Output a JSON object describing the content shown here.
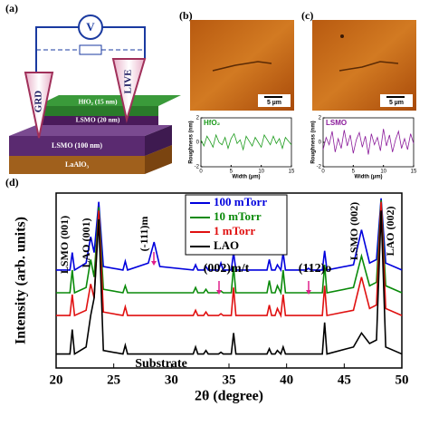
{
  "panel_labels": [
    "(a)",
    "(b)",
    "(c)",
    "(d)"
  ],
  "schematic": {
    "voltmeter": "V",
    "probes": [
      "GRD",
      "LIVE"
    ],
    "layers": [
      "HfO₂ (15 nm)",
      "LSMO (20 nm)",
      "LSMO (100 nm)",
      "LaAlO₃"
    ]
  },
  "afm_images": [
    {
      "scale_bar": "5 µm"
    },
    {
      "scale_bar": "5 µm"
    }
  ],
  "chart_data": [
    {
      "type": "line",
      "xlabel": "Width (µm)",
      "ylabel": "Roughness (nm)",
      "x": [
        0,
        0.5,
        1,
        1.5,
        2,
        2.5,
        3,
        3.5,
        4,
        4.5,
        5,
        5.5,
        6,
        6.5,
        7,
        7.5,
        8,
        8.5,
        9,
        9.5,
        10,
        10.5,
        11,
        11.5,
        12,
        12.5,
        13,
        13.5,
        14,
        14.5,
        15
      ],
      "series": [
        {
          "name": "HfO₂",
          "color": "#1a9a1a",
          "values": [
            0.2,
            -0.3,
            0.5,
            0.1,
            -0.4,
            0.6,
            0.0,
            -0.2,
            0.4,
            -0.5,
            0.3,
            0.7,
            -0.1,
            0.2,
            -0.6,
            0.5,
            0.1,
            -0.3,
            0.4,
            0.0,
            -0.4,
            0.6,
            0.2,
            -0.2,
            0.5,
            -0.1,
            0.3,
            -0.5,
            0.4,
            0.1,
            -0.2
          ]
        }
      ],
      "xlim": [
        0,
        15
      ],
      "xticks": [
        0,
        5,
        10,
        15
      ],
      "ylim": [
        -2,
        2
      ],
      "yticks": [
        -2,
        0,
        2
      ]
    },
    {
      "type": "line",
      "xlabel": "Width (µm)",
      "ylabel": "Roughness (nm)",
      "x": [
        0,
        0.5,
        1,
        1.5,
        2,
        2.5,
        3,
        3.5,
        4,
        4.5,
        5,
        5.5,
        6,
        6.5,
        7,
        7.5,
        8,
        8.5,
        9,
        9.5,
        10,
        10.5,
        11,
        11.5,
        12,
        12.5,
        13,
        13.5,
        14,
        14.5,
        15
      ],
      "series": [
        {
          "name": "LSMO",
          "color": "#8a1a9a",
          "values": [
            -0.6,
            0.4,
            -0.2,
            0.9,
            -0.8,
            0.3,
            -0.5,
            1.0,
            -0.3,
            0.6,
            -0.9,
            0.2,
            0.8,
            -0.4,
            0.5,
            -1.0,
            0.7,
            -0.2,
            0.4,
            -0.7,
            1.1,
            -0.3,
            0.6,
            -0.8,
            0.2,
            0.9,
            -0.5,
            0.3,
            -0.6,
            0.7,
            -0.1
          ]
        }
      ],
      "xlim": [
        0,
        15
      ],
      "xticks": [
        0,
        5,
        10,
        15
      ],
      "ylim": [
        -2,
        2
      ],
      "yticks": [
        -2,
        0,
        2
      ]
    },
    {
      "type": "line",
      "xlabel": "2θ (degree)",
      "ylabel": "Intensity (arb. units)",
      "x": [
        20,
        21.2,
        21.4,
        21.6,
        22.6,
        23.0,
        23.3,
        23.7,
        24.1,
        25.8,
        26.0,
        26.2,
        28.0,
        28.5,
        29.0,
        31.9,
        32.1,
        32.3,
        32.8,
        33.0,
        33.2,
        34.1,
        34.3,
        34.5,
        35.2,
        35.4,
        35.6,
        38.3,
        38.5,
        38.7,
        39.0,
        39.2,
        39.5,
        39.7,
        39.9,
        41.7,
        41.9,
        42.1,
        43.1,
        43.3,
        43.5,
        45.8,
        46.5,
        47.2,
        47.8,
        48.2,
        48.6,
        50
      ],
      "series": [
        {
          "name": "100 mTorr",
          "color": "#0000dd",
          "values": [
            56,
            56,
            66,
            56,
            60,
            75,
            66,
            95,
            58,
            56,
            61,
            56,
            60,
            72,
            58,
            56,
            59,
            56,
            56,
            58,
            56,
            56,
            60,
            56,
            56,
            66,
            56,
            56,
            62,
            56,
            56,
            59,
            56,
            66,
            56,
            56,
            57,
            56,
            56,
            67,
            56,
            59,
            79,
            60,
            62,
            97,
            60,
            56
          ]
        },
        {
          "name": "10 mTorr",
          "color": "#0a8a0a",
          "values": [
            43,
            43,
            56,
            43,
            46,
            62,
            52,
            92,
            45,
            43,
            47,
            43,
            43,
            43,
            43,
            43,
            46,
            43,
            43,
            45,
            43,
            43,
            44,
            43,
            43,
            58,
            43,
            43,
            50,
            43,
            43,
            47,
            43,
            56,
            43,
            43,
            43,
            43,
            43,
            59,
            43,
            46,
            64,
            47,
            49,
            96,
            47,
            43
          ]
        },
        {
          "name": "1 mTorr",
          "color": "#e01010",
          "values": [
            30,
            30,
            42,
            30,
            33,
            48,
            40,
            90,
            32,
            30,
            35,
            30,
            30,
            30,
            30,
            30,
            33,
            30,
            30,
            32,
            30,
            30,
            31,
            30,
            30,
            46,
            30,
            30,
            36,
            30,
            30,
            34,
            30,
            42,
            30,
            30,
            30,
            30,
            30,
            47,
            30,
            33,
            52,
            34,
            36,
            95,
            34,
            30
          ]
        },
        {
          "name": "LAO",
          "color": "#000000",
          "values": [
            8,
            8,
            22,
            8,
            12,
            30,
            40,
            85,
            10,
            8,
            13,
            8,
            8,
            8,
            8,
            8,
            12,
            8,
            8,
            10,
            8,
            8,
            9,
            8,
            8,
            20,
            8,
            8,
            11,
            8,
            8,
            10,
            8,
            12,
            8,
            8,
            8,
            8,
            8,
            26,
            8,
            12,
            20,
            14,
            16,
            90,
            12,
            8
          ]
        }
      ],
      "xlim": [
        20,
        50
      ],
      "xticks": [
        20,
        25,
        30,
        35,
        40,
        45,
        50
      ],
      "ylim": [
        0,
        100
      ],
      "annotations": [
        "LSMO (001)",
        "LAO (001)",
        "(-111)m",
        "(002)m/t",
        "(112)o",
        "LSMO (002)",
        "LAO (002)",
        "Substrate"
      ]
    }
  ]
}
